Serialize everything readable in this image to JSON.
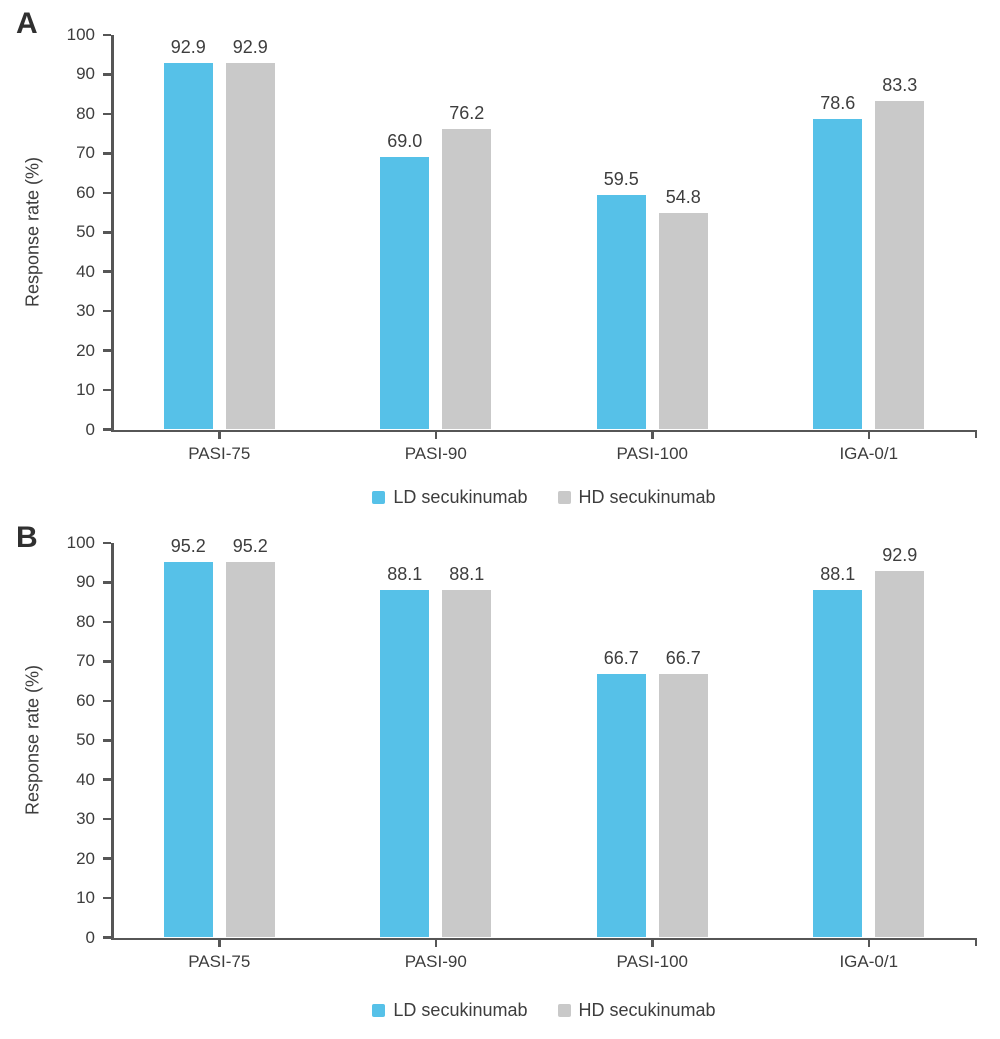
{
  "figure": {
    "ylabel": "Response rate (%)",
    "colors": {
      "ld_series": "#56C1E8",
      "hd_series": "#C9C9C9",
      "axis": "#565656",
      "text": "#3D3D3D",
      "background": "#FFFFFF"
    }
  },
  "chart_data": [
    {
      "type": "bar",
      "panel_label": "A",
      "categories": [
        "PASI-75",
        "PASI-90",
        "PASI-100",
        "IGA-0/1"
      ],
      "series": [
        {
          "name": "LD secukinumab",
          "color": "#56C1E8",
          "values": [
            92.9,
            69.0,
            59.5,
            78.6
          ]
        },
        {
          "name": "HD secukinumab",
          "color": "#C9C9C9",
          "values": [
            92.9,
            76.2,
            54.8,
            83.3
          ]
        }
      ],
      "value_labels": [
        "92.9",
        "92.9",
        "69.0",
        "76.2",
        "59.5",
        "54.8",
        "78.6",
        "83.3"
      ],
      "xlabel": "",
      "ylabel": "Response rate (%)",
      "ylim": [
        0,
        100
      ],
      "ytick_step": 10,
      "yticks": [
        0,
        10,
        20,
        30,
        40,
        50,
        60,
        70,
        80,
        90,
        100
      ],
      "grid": false,
      "legend_position": "bottom",
      "legend": [
        "LD secukinumab",
        "HD secukinumab"
      ]
    },
    {
      "type": "bar",
      "panel_label": "B",
      "categories": [
        "PASI-75",
        "PASI-90",
        "PASI-100",
        "IGA-0/1"
      ],
      "series": [
        {
          "name": "LD secukinumab",
          "color": "#56C1E8",
          "values": [
            95.2,
            88.1,
            66.7,
            88.1
          ]
        },
        {
          "name": "HD secukinumab",
          "color": "#C9C9C9",
          "values": [
            95.2,
            88.1,
            66.7,
            92.9
          ]
        }
      ],
      "value_labels": [
        "95.2",
        "95.2",
        "88.1",
        "88.1",
        "66.7",
        "66.7",
        "88.1",
        "92.9"
      ],
      "xlabel": "",
      "ylabel": "Response rate (%)",
      "ylim": [
        0,
        100
      ],
      "ytick_step": 10,
      "yticks": [
        0,
        10,
        20,
        30,
        40,
        50,
        60,
        70,
        80,
        90,
        100
      ],
      "grid": false,
      "legend_position": "bottom",
      "legend": [
        "LD secukinumab",
        "HD secukinumab"
      ]
    }
  ]
}
